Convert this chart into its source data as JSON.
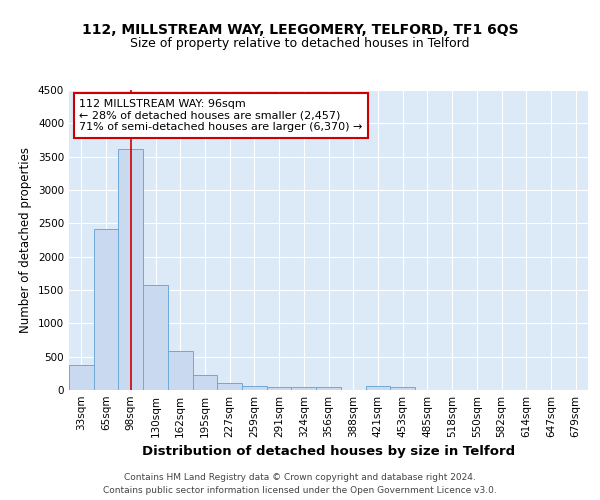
{
  "title1": "112, MILLSTREAM WAY, LEEGOMERY, TELFORD, TF1 6QS",
  "title2": "Size of property relative to detached houses in Telford",
  "xlabel": "Distribution of detached houses by size in Telford",
  "ylabel": "Number of detached properties",
  "categories": [
    "33sqm",
    "65sqm",
    "98sqm",
    "130sqm",
    "162sqm",
    "195sqm",
    "227sqm",
    "259sqm",
    "291sqm",
    "324sqm",
    "356sqm",
    "388sqm",
    "421sqm",
    "453sqm",
    "485sqm",
    "518sqm",
    "550sqm",
    "582sqm",
    "614sqm",
    "647sqm",
    "679sqm"
  ],
  "values": [
    370,
    2420,
    3620,
    1580,
    580,
    230,
    110,
    65,
    50,
    45,
    45,
    0,
    60,
    45,
    0,
    0,
    0,
    0,
    0,
    0,
    0
  ],
  "bar_color": "#c9daf0",
  "bar_edge_color": "#6fa8d6",
  "vline_x": 2,
  "vline_color": "#cc0000",
  "annotation_text": "112 MILLSTREAM WAY: 96sqm\n← 28% of detached houses are smaller (2,457)\n71% of semi-detached houses are larger (6,370) →",
  "annotation_box_facecolor": "#ffffff",
  "annotation_box_edgecolor": "#cc0000",
  "ylim": [
    0,
    4500
  ],
  "yticks": [
    0,
    500,
    1000,
    1500,
    2000,
    2500,
    3000,
    3500,
    4000,
    4500
  ],
  "footnote": "Contains HM Land Registry data © Crown copyright and database right 2024.\nContains public sector information licensed under the Open Government Licence v3.0.",
  "fig_bg_color": "#ffffff",
  "plot_bg_color": "#dce9f7",
  "grid_color": "#ffffff",
  "title1_fontsize": 10,
  "title2_fontsize": 9,
  "xlabel_fontsize": 9.5,
  "ylabel_fontsize": 8.5,
  "tick_fontsize": 7.5,
  "footnote_fontsize": 6.5,
  "annot_fontsize": 8
}
